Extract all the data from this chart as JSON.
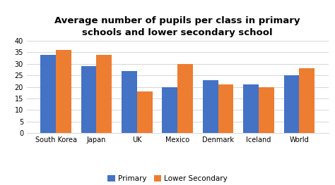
{
  "title": "Average number of pupils per class in primary\nschools and lower secondary school",
  "categories": [
    "South Korea",
    "Japan",
    "UK",
    "Mexico",
    "Denmark",
    "Iceland",
    "World"
  ],
  "primary": [
    34,
    29,
    27,
    20,
    23,
    21,
    25
  ],
  "lower_secondary": [
    36,
    34,
    18,
    30,
    21,
    20,
    28
  ],
  "primary_color": "#4472C4",
  "secondary_color": "#ED7D31",
  "ylim": [
    0,
    40
  ],
  "yticks": [
    0,
    5,
    10,
    15,
    20,
    25,
    30,
    35,
    40
  ],
  "legend_labels": [
    "Primary",
    "Lower Secondary"
  ],
  "bar_width": 0.38,
  "background_color": "#ffffff",
  "title_fontsize": 9.5,
  "tick_fontsize": 7,
  "legend_fontsize": 7.5
}
